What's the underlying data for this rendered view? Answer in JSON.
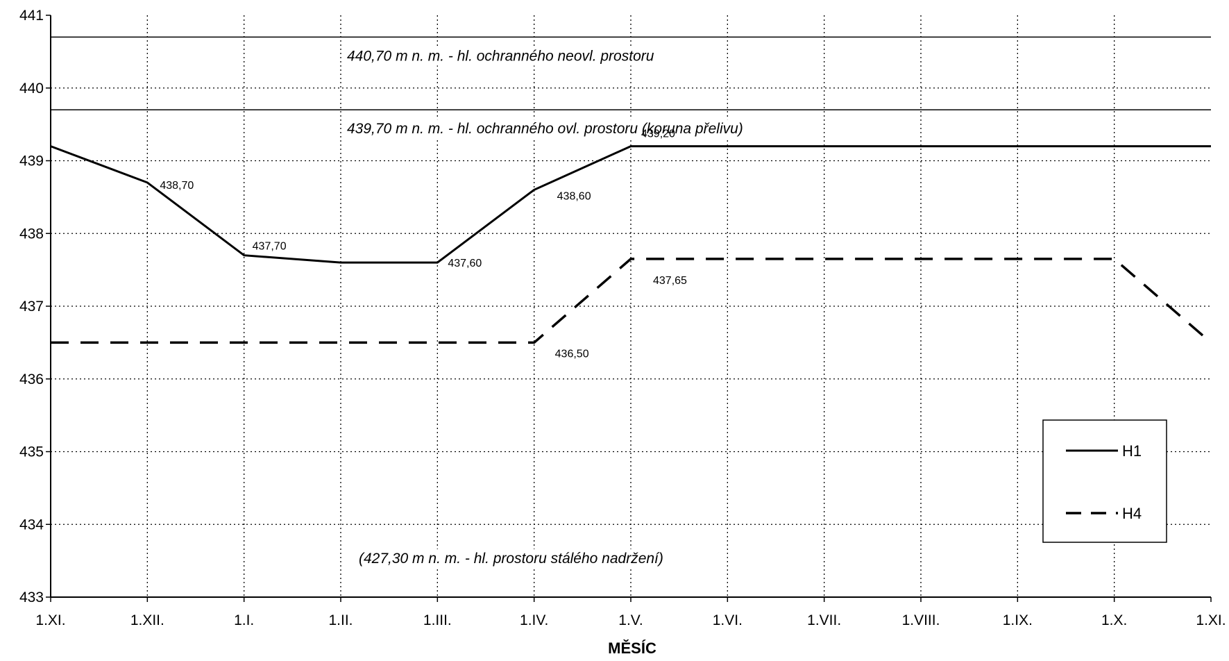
{
  "chart_data": {
    "type": "line",
    "xlabel": "MĚSÍC",
    "ylabel": "",
    "categories": [
      "1.XI.",
      "1.XII.",
      "1.I.",
      "1.II.",
      "1.III.",
      "1.IV.",
      "1.V.",
      "1.VI.",
      "1.VII.",
      "1.VIII.",
      "1.IX.",
      "1.X.",
      "1.XI."
    ],
    "ylim": [
      433,
      441
    ],
    "yticks": [
      "433",
      "434",
      "435",
      "436",
      "437",
      "438",
      "439",
      "440",
      "441"
    ],
    "grid": true,
    "legend_position": "bottom-right",
    "series": [
      {
        "name": "H1",
        "style": "solid",
        "values": [
          439.2,
          438.7,
          437.7,
          437.6,
          437.6,
          438.6,
          439.2,
          439.2,
          439.2,
          439.2,
          439.2,
          439.2,
          439.2
        ]
      },
      {
        "name": "H4",
        "style": "dashed",
        "values": [
          436.5,
          436.5,
          436.5,
          436.5,
          436.5,
          436.5,
          437.65,
          437.65,
          437.65,
          437.65,
          437.65,
          437.65,
          436.5
        ]
      }
    ],
    "data_labels": [
      {
        "series": 0,
        "index": 1,
        "text": "438,70"
      },
      {
        "series": 0,
        "index": 2,
        "text": "437,70"
      },
      {
        "series": 0,
        "index": 4,
        "text": "437,60"
      },
      {
        "series": 0,
        "index": 5,
        "text": "438,60"
      },
      {
        "series": 0,
        "index": 6,
        "text": "439,20"
      },
      {
        "series": 1,
        "index": 5,
        "text": "436,50"
      },
      {
        "series": 1,
        "index": 6,
        "text": "437,65"
      }
    ],
    "reference_lines": [
      {
        "value": 440.7,
        "label": "440,70 m n. m. - hl. ochranného neovl. prostoru"
      },
      {
        "value": 439.7,
        "label": "439,70 m n. m. - hl. ochranného ovl. prostoru (koruna přelivu)"
      }
    ],
    "annotations": [
      {
        "text": "(427,30 m n. m. - hl. prostoru stálého nadržení)"
      }
    ]
  }
}
